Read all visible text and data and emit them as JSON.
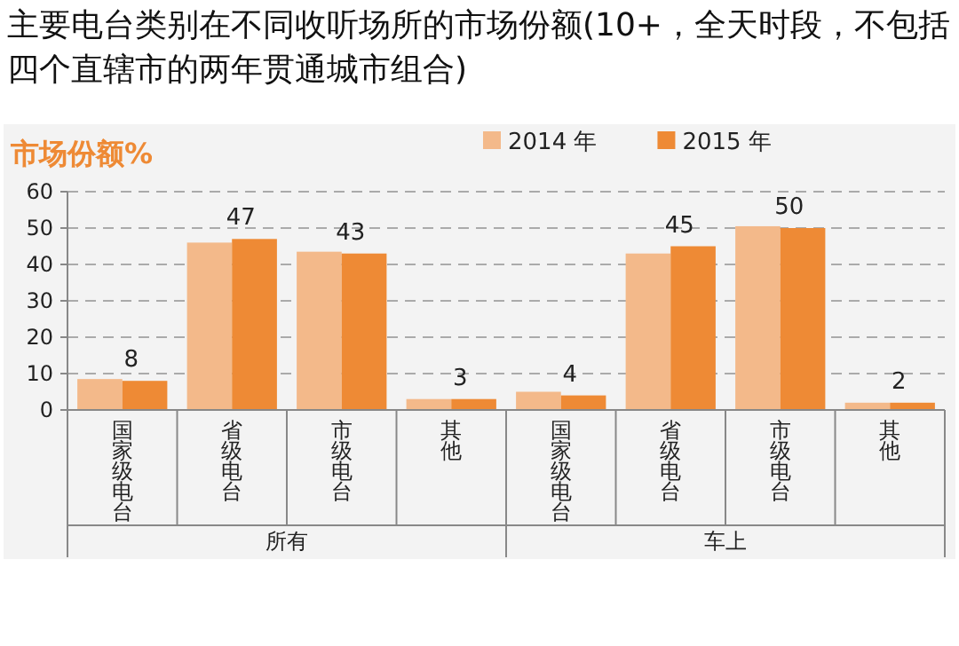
{
  "chart_data": {
    "type": "bar",
    "title": "主要电台类别在不同收听场所的市场份额(10+，全天时段，不包括四个直辖市的两年贯通城市组合)",
    "ylabel": "市场份额%",
    "categories": [
      "国家级电台",
      "省级电台",
      "市级电台",
      "其他",
      "国家级电台",
      "省级电台",
      "市级电台",
      "其他"
    ],
    "series": [
      {
        "name": "2014 年",
        "color": "#f3b98a",
        "values": [
          8.5,
          46,
          43.5,
          3,
          5,
          43,
          50.5,
          2
        ]
      },
      {
        "name": "2015 年",
        "color": "#ee8a35",
        "values": [
          8,
          47,
          43,
          3,
          4,
          45,
          50,
          2
        ],
        "value_labels": [
          "8",
          "47",
          "43",
          "3",
          "4",
          "45",
          "50",
          "2"
        ]
      }
    ],
    "ylim": [
      0,
      60
    ],
    "yticks": [
      0,
      10,
      20,
      30,
      40,
      50,
      60
    ],
    "grid": "y",
    "legend": "top right",
    "annotations": [
      "所有",
      "车上"
    ]
  }
}
